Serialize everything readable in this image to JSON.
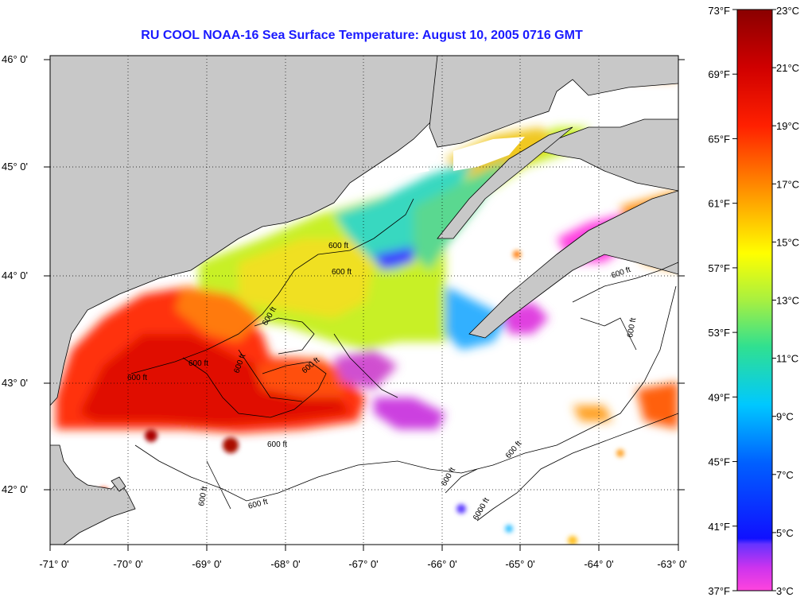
{
  "title": "RU COOL  NOAA-16  Sea Surface Temperature:  August 10, 2005 0716 GMT",
  "lat_labels": [
    "46° 0'",
    "45° 0'",
    "44° 0'",
    "43° 0'",
    "42° 0'"
  ],
  "lon_labels": [
    "-71° 0'",
    "-70° 0'",
    "-69° 0'",
    "-68° 0'",
    "-67° 0'",
    "-66° 0'",
    "-65° 0'",
    "-64° 0'",
    "-63° 0'"
  ],
  "colorbar": {
    "f_labels": [
      "73°F",
      "69°F",
      "65°F",
      "61°F",
      "57°F",
      "53°F",
      "49°F",
      "45°F",
      "41°F",
      "37°F"
    ],
    "c_labels": [
      "23°C",
      "21°C",
      "19°C",
      "17°C",
      "15°C",
      "13°C",
      "11°C",
      "9°C",
      "7°C",
      "5°C",
      "3°C"
    ],
    "range_c": [
      3,
      23
    ]
  },
  "contour_labels": [
    "600 ft",
    "600 ft",
    "600 ft",
    "600 ft",
    "600 ft",
    "600 ft",
    "600 ft",
    "600 ft",
    "600 ft",
    "600 ft",
    "600 ft",
    "600 ft",
    "6000 ft",
    "600 ft",
    "600 ft"
  ],
  "colors": {
    "land": "#c8c8c8",
    "title": "#1a1aff",
    "coast": "#000000"
  }
}
